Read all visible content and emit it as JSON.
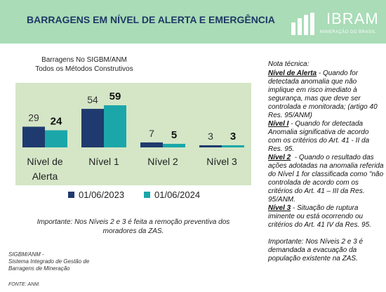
{
  "header": {
    "title": "BARRAGENS EM NÍVEL DE ALERTA E EMERGÊNCIA",
    "logo": "IBRAM",
    "logo_sub": "MINERAÇÃO DO BRASIL"
  },
  "chart_data": {
    "type": "bar",
    "subtitle": [
      "Barragens No SIGBM/ANM",
      "Todos os Métodos Construtivos"
    ],
    "categories": [
      "Nível de Alerta",
      "Nível 1",
      "Nível 2",
      "Nível 3"
    ],
    "series": [
      {
        "name": "01/06/2023",
        "color": "#1f3a6e",
        "values": [
          29,
          54,
          7,
          3
        ]
      },
      {
        "name": "01/06/2024",
        "color": "#1ba7a9",
        "values": [
          24,
          59,
          5,
          3
        ]
      }
    ],
    "background": "#d4e6c6"
  },
  "important": "Importante: Nos Níveis 2 e 3 é feita a remoção preventiva dos moradores da ZAS.",
  "footer": {
    "source_lines": [
      "SIGBM/ANM -",
      "Sistema Integrado de Gestão de",
      "Barragens de Mineração"
    ],
    "fonte": "FONTE: ANM."
  },
  "notes": {
    "heading": "Nota técnica:",
    "items": [
      {
        "label": "Nível de Alerta",
        "text": " - Quando for detectada anomalia que não implique em risco imediato à segurança, mas que deve ser controlada e monitorada; (artigo 40 Res. 95/ANM)"
      },
      {
        "label": "Nível I",
        "text": " - Quando for detectada Anomalia significativa de acordo com os critérios do Art. 41 - II da Res. 95."
      },
      {
        "label": "Nível 2",
        "text": "  - Quando o resultado das ações adotadas na anomalia referida do Nível 1 for classificada como \"não controlada de acordo com os critérios do Art. 41 – III da Res. 95/ANM."
      },
      {
        "label": "Nível 3",
        "text": " - Situação de ruptura iminente ou está ocorrendo ou critérios do Art. 41 IV da Res. 95."
      }
    ],
    "important": "Importante: Nos Níveis 2 e 3 é demandada a evacuação da população existente na ZAS."
  }
}
